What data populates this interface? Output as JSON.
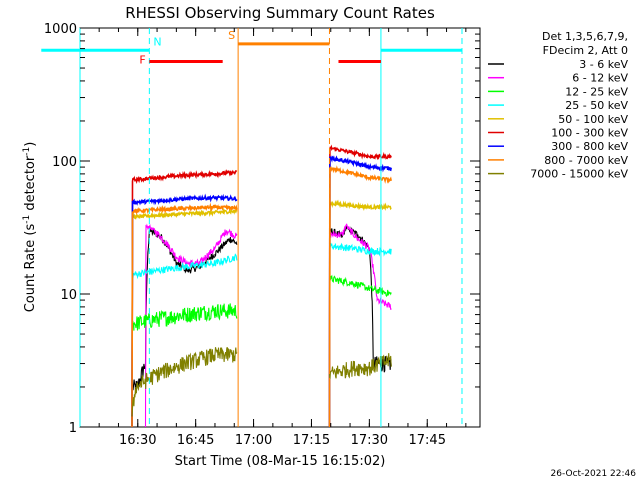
{
  "chart_data": {
    "type": "line",
    "title": "RHESSI Observing Summary Count Rates",
    "xlabel": "Start Time (08-Mar-15 16:15:02)",
    "ylabel_main": "Count Rate (s",
    "ylabel_sup1": "-1",
    "ylabel_mid": " detector",
    "ylabel_sup2": "-1",
    "ylabel_end": ")",
    "yscale": "log",
    "xlim": [
      "16:15:02",
      "17:58:40"
    ],
    "ylim": [
      1,
      1000
    ],
    "x_ticks": [
      "16:30",
      "16:45",
      "17:00",
      "17:15",
      "17:30",
      "17:45"
    ],
    "y_ticks": [
      "1",
      "10",
      "100",
      "1000"
    ],
    "legend_header": [
      "Det 1,3,5,6,7,9,",
      "FDecim 2, Att 0"
    ],
    "series": [
      {
        "name": "3 - 6 keV",
        "color": "#000000",
        "segments": [
          [
            [
              "16:28:30",
              0
            ],
            [
              "16:30:00",
              2.0
            ],
            [
              "16:32:00",
              3.0
            ],
            [
              "16:33:00",
              30
            ],
            [
              "16:36:00",
              27
            ],
            [
              "16:40:00",
              17
            ],
            [
              "16:43:00",
              15
            ],
            [
              "16:46:00",
              16
            ],
            [
              "16:50:00",
              20
            ],
            [
              "16:54:00",
              26
            ],
            [
              "16:55:40",
              24
            ]
          ],
          [
            [
              "17:19:40",
              0
            ],
            [
              "17:20:00",
              30
            ],
            [
              "17:23:00",
              27
            ],
            [
              "17:24:00",
              32
            ],
            [
              "17:25:00",
              30
            ],
            [
              "17:27:00",
              28
            ],
            [
              "17:30:00",
              22
            ],
            [
              "17:31:00",
              3.0
            ],
            [
              "17:34:00",
              3.0
            ],
            [
              "17:35:40",
              3.0
            ]
          ]
        ]
      },
      {
        "name": "6 - 12 keV",
        "color": "#ff00ff",
        "segments": [
          [
            [
              "16:32:00",
              0
            ],
            [
              "16:33:00",
              32
            ],
            [
              "16:36:00",
              27
            ],
            [
              "16:40:00",
              19
            ],
            [
              "16:43:00",
              17
            ],
            [
              "16:46:00",
              17
            ],
            [
              "16:50:00",
              22
            ],
            [
              "16:53:00",
              30
            ],
            [
              "16:55:40",
              27
            ]
          ],
          [
            [
              "17:19:40",
              0
            ],
            [
              "17:20:00",
              28
            ],
            [
              "17:23:00",
              28
            ],
            [
              "17:24:00",
              33
            ],
            [
              "17:25:00",
              30
            ],
            [
              "17:27:00",
              26
            ],
            [
              "17:30:00",
              22
            ],
            [
              "17:32:00",
              9
            ],
            [
              "17:35:40",
              8
            ]
          ]
        ]
      },
      {
        "name": "12 - 25 keV",
        "color": "#00ff00",
        "segments": [
          [
            [
              "16:28:30",
              0
            ],
            [
              "16:29:00",
              6.0
            ],
            [
              "16:35:00",
              6.5
            ],
            [
              "16:42:00",
              7.0
            ],
            [
              "16:50:00",
              7.5
            ],
            [
              "16:55:40",
              7.5
            ]
          ],
          [
            [
              "17:19:40",
              0
            ],
            [
              "17:20:00",
              13
            ],
            [
              "17:26:00",
              12
            ],
            [
              "17:30:00",
              11
            ],
            [
              "17:35:40",
              10
            ]
          ]
        ]
      },
      {
        "name": "25 - 50 keV",
        "color": "#00ffff",
        "segments": [
          [
            [
              "16:28:30",
              0
            ],
            [
              "16:29:00",
              14
            ],
            [
              "16:35:00",
              15
            ],
            [
              "16:42:00",
              16
            ],
            [
              "16:50:00",
              17
            ],
            [
              "16:55:40",
              19
            ]
          ],
          [
            [
              "17:19:40",
              0
            ],
            [
              "17:20:00",
              23
            ],
            [
              "17:26:00",
              22
            ],
            [
              "17:30:00",
              21
            ],
            [
              "17:35:40",
              21
            ]
          ]
        ]
      },
      {
        "name": "50 - 100 keV",
        "color": "#e0c000",
        "segments": [
          [
            [
              "16:28:30",
              0
            ],
            [
              "16:29:00",
              38
            ],
            [
              "16:35:00",
              39
            ],
            [
              "16:42:00",
              40
            ],
            [
              "16:50:00",
              41
            ],
            [
              "16:55:40",
              42
            ]
          ],
          [
            [
              "17:19:40",
              0
            ],
            [
              "17:20:00",
              48
            ],
            [
              "17:26:00",
              46
            ],
            [
              "17:30:00",
              45
            ],
            [
              "17:35:40",
              45
            ]
          ]
        ]
      },
      {
        "name": "100 - 300 keV",
        "color": "#e00000",
        "segments": [
          [
            [
              "16:28:30",
              0
            ],
            [
              "16:29:00",
              72
            ],
            [
              "16:35:00",
              75
            ],
            [
              "16:42:00",
              78
            ],
            [
              "16:50:00",
              80
            ],
            [
              "16:55:40",
              82
            ]
          ],
          [
            [
              "17:19:40",
              0
            ],
            [
              "17:20:00",
              125
            ],
            [
              "17:26:00",
              115
            ],
            [
              "17:30:00",
              108
            ],
            [
              "17:35:40",
              108
            ]
          ]
        ]
      },
      {
        "name": "300 - 800 keV",
        "color": "#0000ff",
        "segments": [
          [
            [
              "16:28:30",
              0
            ],
            [
              "16:29:00",
              49
            ],
            [
              "16:35:00",
              50
            ],
            [
              "16:42:00",
              52
            ],
            [
              "16:50:00",
              53
            ],
            [
              "16:55:40",
              52
            ]
          ],
          [
            [
              "17:19:40",
              0
            ],
            [
              "17:20:00",
              105
            ],
            [
              "17:26:00",
              97
            ],
            [
              "17:30:00",
              90
            ],
            [
              "17:35:40",
              88
            ]
          ]
        ]
      },
      {
        "name": "800 - 7000 keV",
        "color": "#ff8000",
        "segments": [
          [
            [
              "16:28:30",
              0
            ],
            [
              "16:29:00",
              42
            ],
            [
              "16:35:00",
              43
            ],
            [
              "16:42:00",
              44
            ],
            [
              "16:50:00",
              45
            ],
            [
              "16:55:40",
              44
            ]
          ],
          [
            [
              "17:19:40",
              0
            ],
            [
              "17:20:00",
              88
            ],
            [
              "17:26:00",
              80
            ],
            [
              "17:30:00",
              75
            ],
            [
              "17:35:40",
              72
            ]
          ]
        ]
      },
      {
        "name": "7000 - 15000 keV",
        "color": "#808000",
        "segments": [
          [
            [
              "16:28:30",
              1.2
            ],
            [
              "16:29:30",
              2.0
            ],
            [
              "16:35:00",
              2.5
            ],
            [
              "16:42:00",
              3.0
            ],
            [
              "16:50:00",
              3.5
            ],
            [
              "16:55:40",
              3.5
            ]
          ],
          [
            [
              "17:19:40",
              2.5
            ],
            [
              "17:26:00",
              2.8
            ],
            [
              "17:30:00",
              2.8
            ],
            [
              "17:35:40",
              3.2
            ]
          ]
        ]
      }
    ],
    "vertical_lines": [
      {
        "x": "16:15:02",
        "color": "#00ffff",
        "style": "solid"
      },
      {
        "x": "16:33:00",
        "color": "#00ffff",
        "style": "dashed"
      },
      {
        "x": "16:56:00",
        "color": "#ff8000",
        "style": "solid"
      },
      {
        "x": "17:19:40",
        "color": "#ff8000",
        "style": "dashed"
      },
      {
        "x": "17:33:00",
        "color": "#00ffff",
        "style": "solid"
      },
      {
        "x": "17:54:00",
        "color": "#00ffff",
        "style": "dashed"
      }
    ],
    "intervals": [
      {
        "label": "",
        "color": "#00ffff",
        "start": "16:05:00",
        "end": "16:33:00",
        "y": 680
      },
      {
        "label": "N",
        "color": "#00ffff",
        "start": "16:33:00",
        "end": "16:33:00",
        "y": 680
      },
      {
        "label": "",
        "color": "#00ffff",
        "start": "17:33:00",
        "end": "17:54:00",
        "y": 680
      },
      {
        "label": "F",
        "color": "#ff0000",
        "start": "16:33:00",
        "end": "16:52:00",
        "y": 560
      },
      {
        "label": "",
        "color": "#ff0000",
        "start": "17:22:00",
        "end": "17:33:00",
        "y": 560
      },
      {
        "label": "S",
        "color": "#ff8000",
        "start": "16:56:00",
        "end": "17:19:40",
        "y": 760
      }
    ],
    "grid": false,
    "legend_placement": "right"
  },
  "timestamp": "26-Oct-2021 22:46"
}
